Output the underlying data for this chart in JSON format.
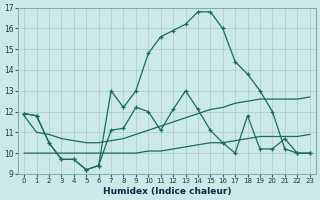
{
  "xlabel": "Humidex (Indice chaleur)",
  "bg_color": "#cce8e8",
  "grid_color": "#aacccc",
  "line_color": "#1a6b5a",
  "xlim": [
    -0.5,
    23.5
  ],
  "ylim": [
    9,
    17
  ],
  "xticks": [
    0,
    1,
    2,
    3,
    4,
    5,
    6,
    7,
    8,
    9,
    10,
    11,
    12,
    13,
    14,
    15,
    16,
    17,
    18,
    19,
    20,
    21,
    22,
    23
  ],
  "yticks": [
    9,
    10,
    11,
    12,
    13,
    14,
    15,
    16,
    17
  ],
  "line_main_x": [
    0,
    1,
    2,
    3,
    4,
    5,
    6,
    7,
    8,
    9,
    10,
    11,
    12,
    13,
    14,
    15,
    16,
    17,
    18,
    19,
    20,
    21,
    22,
    23
  ],
  "line_main_y": [
    11.9,
    11.8,
    10.5,
    9.7,
    9.7,
    9.2,
    9.4,
    13.0,
    12.2,
    13.0,
    14.8,
    15.6,
    15.9,
    16.2,
    16.8,
    16.8,
    16.0,
    14.4,
    13.8,
    13.0,
    12.0,
    10.2,
    10.0,
    10.0
  ],
  "line_sec_x": [
    0,
    1,
    2,
    3,
    4,
    5,
    6,
    7,
    8,
    9,
    10,
    11,
    12,
    13,
    14,
    15,
    16,
    17,
    18,
    19,
    20,
    21,
    22,
    23
  ],
  "line_sec_y": [
    11.9,
    11.8,
    10.5,
    9.7,
    9.7,
    9.2,
    9.4,
    11.1,
    11.2,
    12.2,
    12.0,
    11.1,
    12.1,
    13.0,
    12.1,
    11.1,
    10.5,
    10.0,
    11.8,
    10.2,
    10.2,
    10.7,
    10.0,
    10.0
  ],
  "line_avg1_x": [
    0,
    1,
    2,
    3,
    4,
    5,
    6,
    7,
    8,
    9,
    10,
    11,
    12,
    13,
    14,
    15,
    16,
    17,
    18,
    19,
    20,
    21,
    22,
    23
  ],
  "line_avg1_y": [
    11.8,
    11.0,
    10.9,
    10.7,
    10.6,
    10.5,
    10.5,
    10.6,
    10.7,
    10.9,
    11.1,
    11.3,
    11.5,
    11.7,
    11.9,
    12.1,
    12.2,
    12.4,
    12.5,
    12.6,
    12.6,
    12.6,
    12.6,
    12.7
  ],
  "line_avg2_x": [
    0,
    1,
    2,
    3,
    4,
    5,
    6,
    7,
    8,
    9,
    10,
    11,
    12,
    13,
    14,
    15,
    16,
    17,
    18,
    19,
    20,
    21,
    22,
    23
  ],
  "line_avg2_y": [
    10.0,
    10.0,
    10.0,
    10.0,
    10.0,
    10.0,
    10.0,
    10.0,
    10.0,
    10.0,
    10.1,
    10.1,
    10.2,
    10.3,
    10.4,
    10.5,
    10.5,
    10.6,
    10.7,
    10.8,
    10.8,
    10.8,
    10.8,
    10.9
  ]
}
